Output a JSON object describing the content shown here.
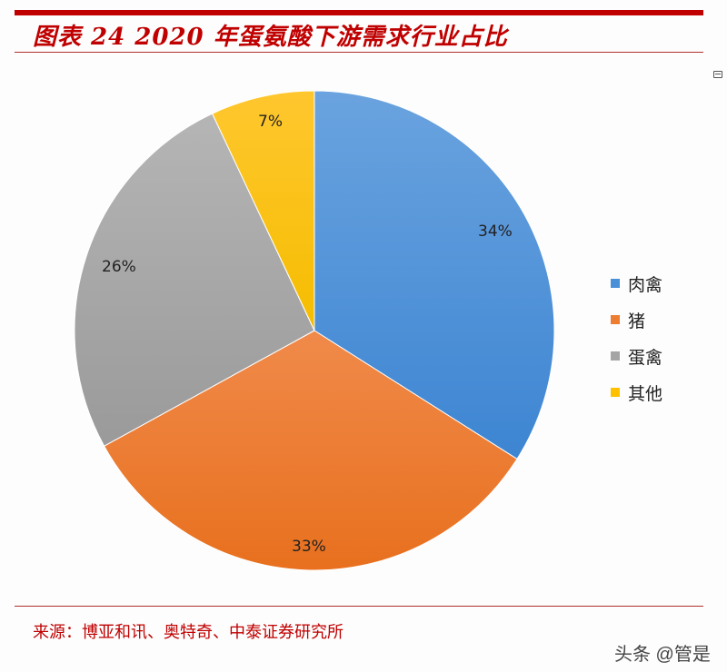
{
  "header": {
    "title": "图表 24 2020 年蛋氨酸下游需求行业占比"
  },
  "chart_data": {
    "type": "pie",
    "title": "2020 年蛋氨酸下游需求行业占比",
    "categories": [
      "肉禽",
      "猪",
      "蛋禽",
      "其他"
    ],
    "values": [
      34,
      33,
      26,
      7
    ],
    "labels": [
      "34%",
      "33%",
      "26%",
      "7%"
    ],
    "colors": [
      "#4a90d9",
      "#ed7d31",
      "#a5a5a5",
      "#ffc000"
    ],
    "start_angle": "12 o'clock, clockwise",
    "legend_position": "right"
  },
  "legend": {
    "items": [
      {
        "label": "肉禽",
        "color": "#4a90d9"
      },
      {
        "label": "猪",
        "color": "#ed7d31"
      },
      {
        "label": "蛋禽",
        "color": "#a5a5a5"
      },
      {
        "label": "其他",
        "color": "#ffc000"
      }
    ]
  },
  "footer": {
    "source": "来源：博亚和讯、奥特奇、中泰证券研究所",
    "watermark": "头条 @管是"
  }
}
